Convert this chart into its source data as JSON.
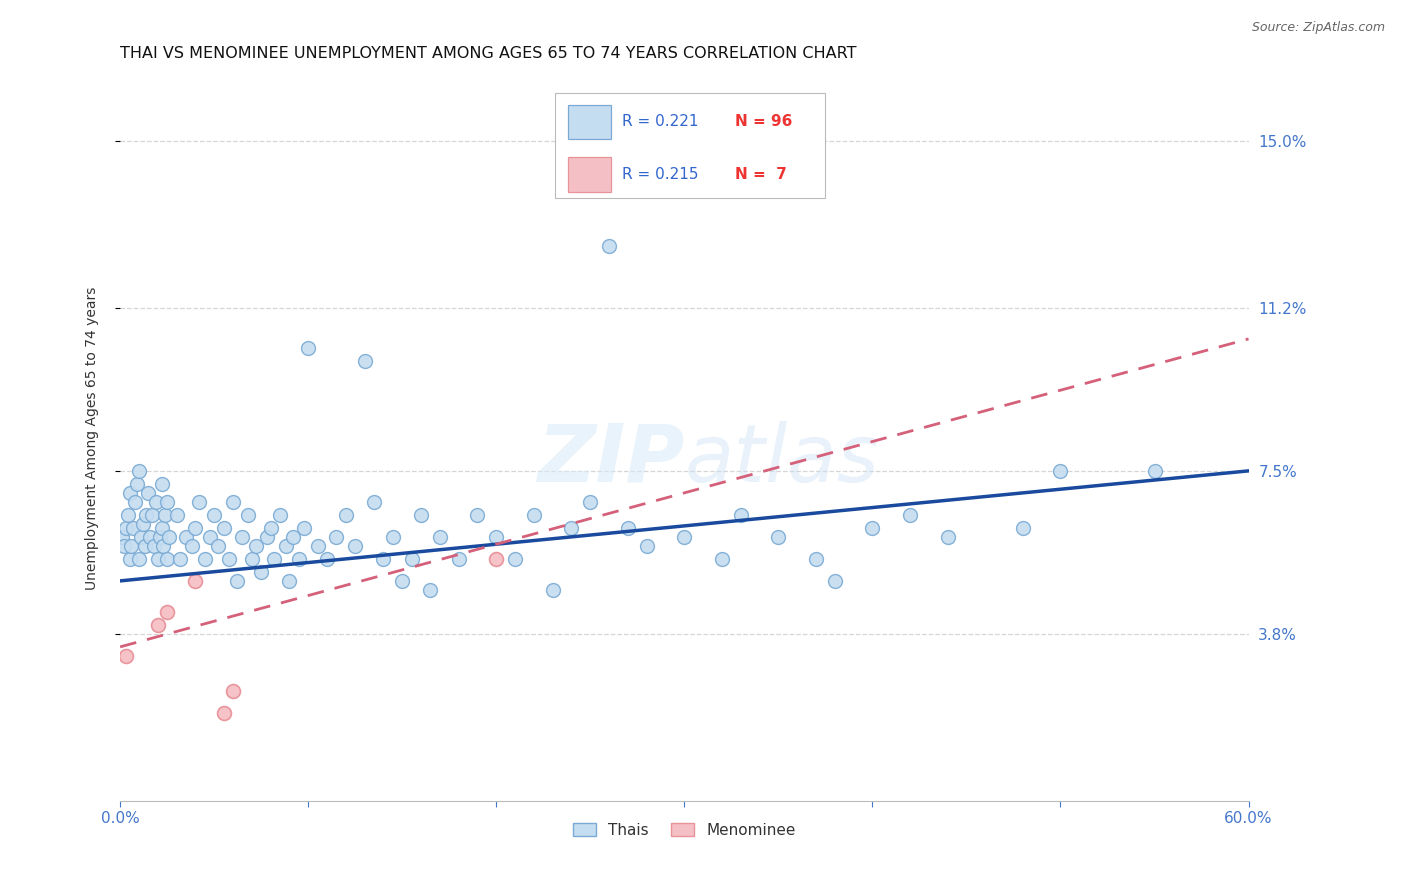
{
  "title": "THAI VS MENOMINEE UNEMPLOYMENT AMONG AGES 65 TO 74 YEARS CORRELATION CHART",
  "source": "Source: ZipAtlas.com",
  "ylabel": "Unemployment Among Ages 65 to 74 years",
  "xlim": [
    0.0,
    0.6
  ],
  "ylim": [
    0.0,
    0.165
  ],
  "ytick_vals": [
    0.038,
    0.075,
    0.112,
    0.15
  ],
  "ytick_labels": [
    "3.8%",
    "7.5%",
    "11.2%",
    "15.0%"
  ],
  "thai_color_edge": "#7aaad4",
  "thai_color_fill": "#c5ddf0",
  "menominee_color_edge": "#e8929a",
  "menominee_color_fill": "#f5c0c5",
  "trendline_thai_color": "#1a4a9e",
  "trendline_menominee_color": "#d4607a",
  "background_color": "#ffffff",
  "grid_color": "#cccccc",
  "title_fontsize": 11.5,
  "tick_fontsize": 11,
  "marker_size": 100,
  "thai_x": [
    0.001,
    0.002,
    0.003,
    0.004,
    0.005,
    0.005,
    0.006,
    0.007,
    0.008,
    0.009,
    0.01,
    0.01,
    0.011,
    0.012,
    0.013,
    0.014,
    0.015,
    0.016,
    0.017,
    0.018,
    0.019,
    0.02,
    0.021,
    0.022,
    0.022,
    0.023,
    0.024,
    0.025,
    0.025,
    0.026,
    0.03,
    0.032,
    0.035,
    0.038,
    0.04,
    0.042,
    0.045,
    0.048,
    0.05,
    0.052,
    0.055,
    0.058,
    0.06,
    0.062,
    0.065,
    0.068,
    0.07,
    0.072,
    0.075,
    0.078,
    0.08,
    0.082,
    0.085,
    0.088,
    0.09,
    0.092,
    0.095,
    0.098,
    0.1,
    0.105,
    0.11,
    0.115,
    0.12,
    0.125,
    0.13,
    0.135,
    0.14,
    0.145,
    0.15,
    0.155,
    0.16,
    0.165,
    0.17,
    0.18,
    0.19,
    0.2,
    0.21,
    0.22,
    0.23,
    0.24,
    0.25,
    0.26,
    0.27,
    0.28,
    0.3,
    0.32,
    0.33,
    0.35,
    0.37,
    0.38,
    0.4,
    0.42,
    0.44,
    0.48,
    0.5,
    0.55
  ],
  "thai_y": [
    0.06,
    0.058,
    0.062,
    0.065,
    0.055,
    0.07,
    0.058,
    0.062,
    0.068,
    0.072,
    0.055,
    0.075,
    0.06,
    0.063,
    0.058,
    0.065,
    0.07,
    0.06,
    0.065,
    0.058,
    0.068,
    0.055,
    0.06,
    0.062,
    0.072,
    0.058,
    0.065,
    0.055,
    0.068,
    0.06,
    0.065,
    0.055,
    0.06,
    0.058,
    0.062,
    0.068,
    0.055,
    0.06,
    0.065,
    0.058,
    0.062,
    0.055,
    0.068,
    0.05,
    0.06,
    0.065,
    0.055,
    0.058,
    0.052,
    0.06,
    0.062,
    0.055,
    0.065,
    0.058,
    0.05,
    0.06,
    0.055,
    0.062,
    0.103,
    0.058,
    0.055,
    0.06,
    0.065,
    0.058,
    0.1,
    0.068,
    0.055,
    0.06,
    0.05,
    0.055,
    0.065,
    0.048,
    0.06,
    0.055,
    0.065,
    0.06,
    0.055,
    0.065,
    0.048,
    0.062,
    0.068,
    0.126,
    0.062,
    0.058,
    0.06,
    0.055,
    0.065,
    0.06,
    0.055,
    0.05,
    0.062,
    0.065,
    0.06,
    0.062,
    0.075,
    0.075
  ],
  "menominee_x": [
    0.003,
    0.02,
    0.025,
    0.04,
    0.055,
    0.06,
    0.2
  ],
  "menominee_y": [
    0.033,
    0.04,
    0.043,
    0.05,
    0.02,
    0.025,
    0.055
  ],
  "thai_trend_x0": 0.0,
  "thai_trend_y0": 0.05,
  "thai_trend_x1": 0.6,
  "thai_trend_y1": 0.075,
  "men_trend_x0": 0.0,
  "men_trend_y0": 0.035,
  "men_trend_x1": 0.6,
  "men_trend_y1": 0.105
}
